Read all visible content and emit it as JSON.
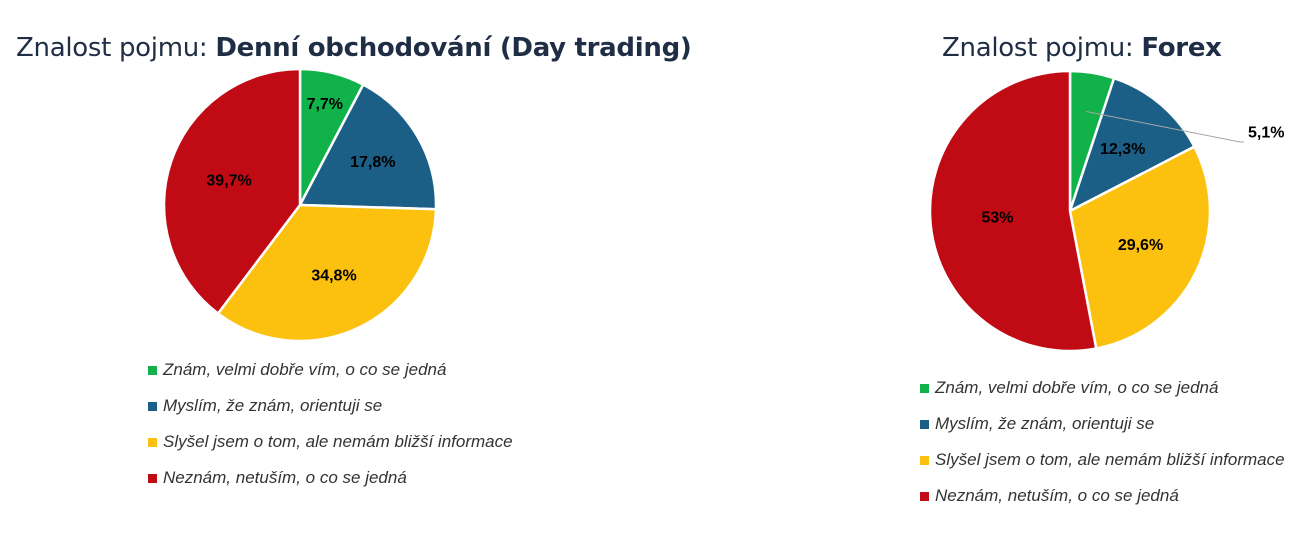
{
  "chart_data": [
    {
      "type": "pie",
      "title_prefix": "Znalost pojmu: ",
      "title_bold": "Denní obchodování (Day trading)",
      "categories": [
        "Znám, velmi dobře vím, o co se jedná",
        "Myslím, že znám, orientuji se",
        "Slyšel jsem o tom, ale nemám bližší informace",
        "Neznám, netuším, o co se jedná"
      ],
      "values": [
        7.7,
        17.8,
        34.8,
        39.7
      ],
      "data_labels": [
        "7,7%",
        "17,8%",
        "34,8%",
        "39,7%"
      ],
      "colors": [
        "#12b24b",
        "#1b5f86",
        "#fcc10f",
        "#c00a14"
      ],
      "legend_position": "bottom"
    },
    {
      "type": "pie",
      "title_prefix": "Znalost pojmu: ",
      "title_bold": "Forex",
      "categories": [
        "Znám, velmi dobře vím, o co se jedná",
        "Myslím, že znám, orientuji se",
        "Slyšel jsem o tom, ale nemám bližší informace",
        "Neznám, netuším, o co se jedná"
      ],
      "values": [
        5.1,
        12.3,
        29.6,
        53
      ],
      "data_labels": [
        "5,1%",
        "12,3%",
        "29,6%",
        "53%"
      ],
      "colors": [
        "#12b24b",
        "#1b5f86",
        "#fcc10f",
        "#c00a14"
      ],
      "legend_position": "bottom"
    }
  ]
}
